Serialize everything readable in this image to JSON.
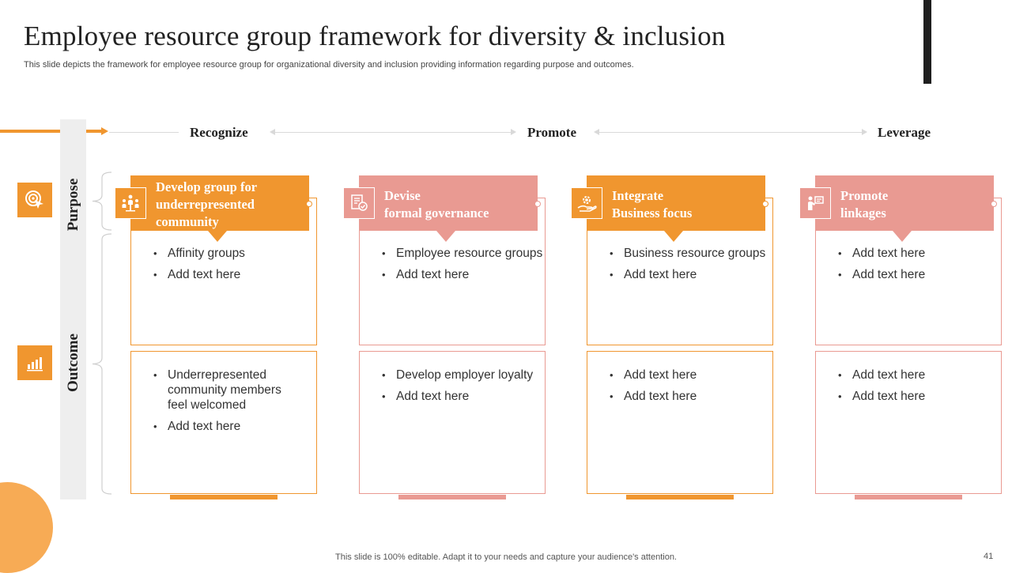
{
  "title": "Employee resource group framework for diversity & inclusion",
  "subtitle": "This slide depicts the framework for employee resource group for organizational diversity and inclusion providing information regarding purpose and outcomes.",
  "stages": [
    "Recognize",
    "Promote",
    "Leverage"
  ],
  "row_labels": {
    "purpose": "Purpose",
    "outcome": "Outcome"
  },
  "side_icons": {
    "purpose": "target-click-icon",
    "outcome": "bar-chart-icon"
  },
  "colors": {
    "orange": "#F0962F",
    "pink": "#E99A92",
    "dark": "#1F1F1F",
    "light_gray": "#EEEEEE"
  },
  "columns": [
    {
      "header": [
        "Develop group for",
        "underrepresented",
        "community"
      ],
      "icon": "community-people-icon",
      "purpose": [
        "Affinity groups",
        "Add text here"
      ],
      "outcome": [
        "Underrepresented community members feel welcomed",
        "Add text here"
      ]
    },
    {
      "header": [
        "Devise",
        "formal governance"
      ],
      "icon": "governance-document-icon",
      "purpose": [
        "Employee resource groups",
        "Add text here"
      ],
      "outcome": [
        "Develop employer loyalty",
        "Add text here"
      ]
    },
    {
      "header": [
        "Integrate",
        "Business focus"
      ],
      "icon": "business-gear-hand-icon",
      "purpose": [
        "Business resource groups",
        "Add text here"
      ],
      "outcome": [
        "Add text here",
        "Add text here"
      ]
    },
    {
      "header": [
        "Promote",
        "linkages"
      ],
      "icon": "presenter-board-icon",
      "purpose": [
        "Add text here",
        "Add text here"
      ],
      "outcome": [
        "Add text here",
        "Add text here"
      ]
    }
  ],
  "footer": "This slide is 100% editable. Adapt it to your needs and capture your audience's attention.",
  "page_number": "41"
}
